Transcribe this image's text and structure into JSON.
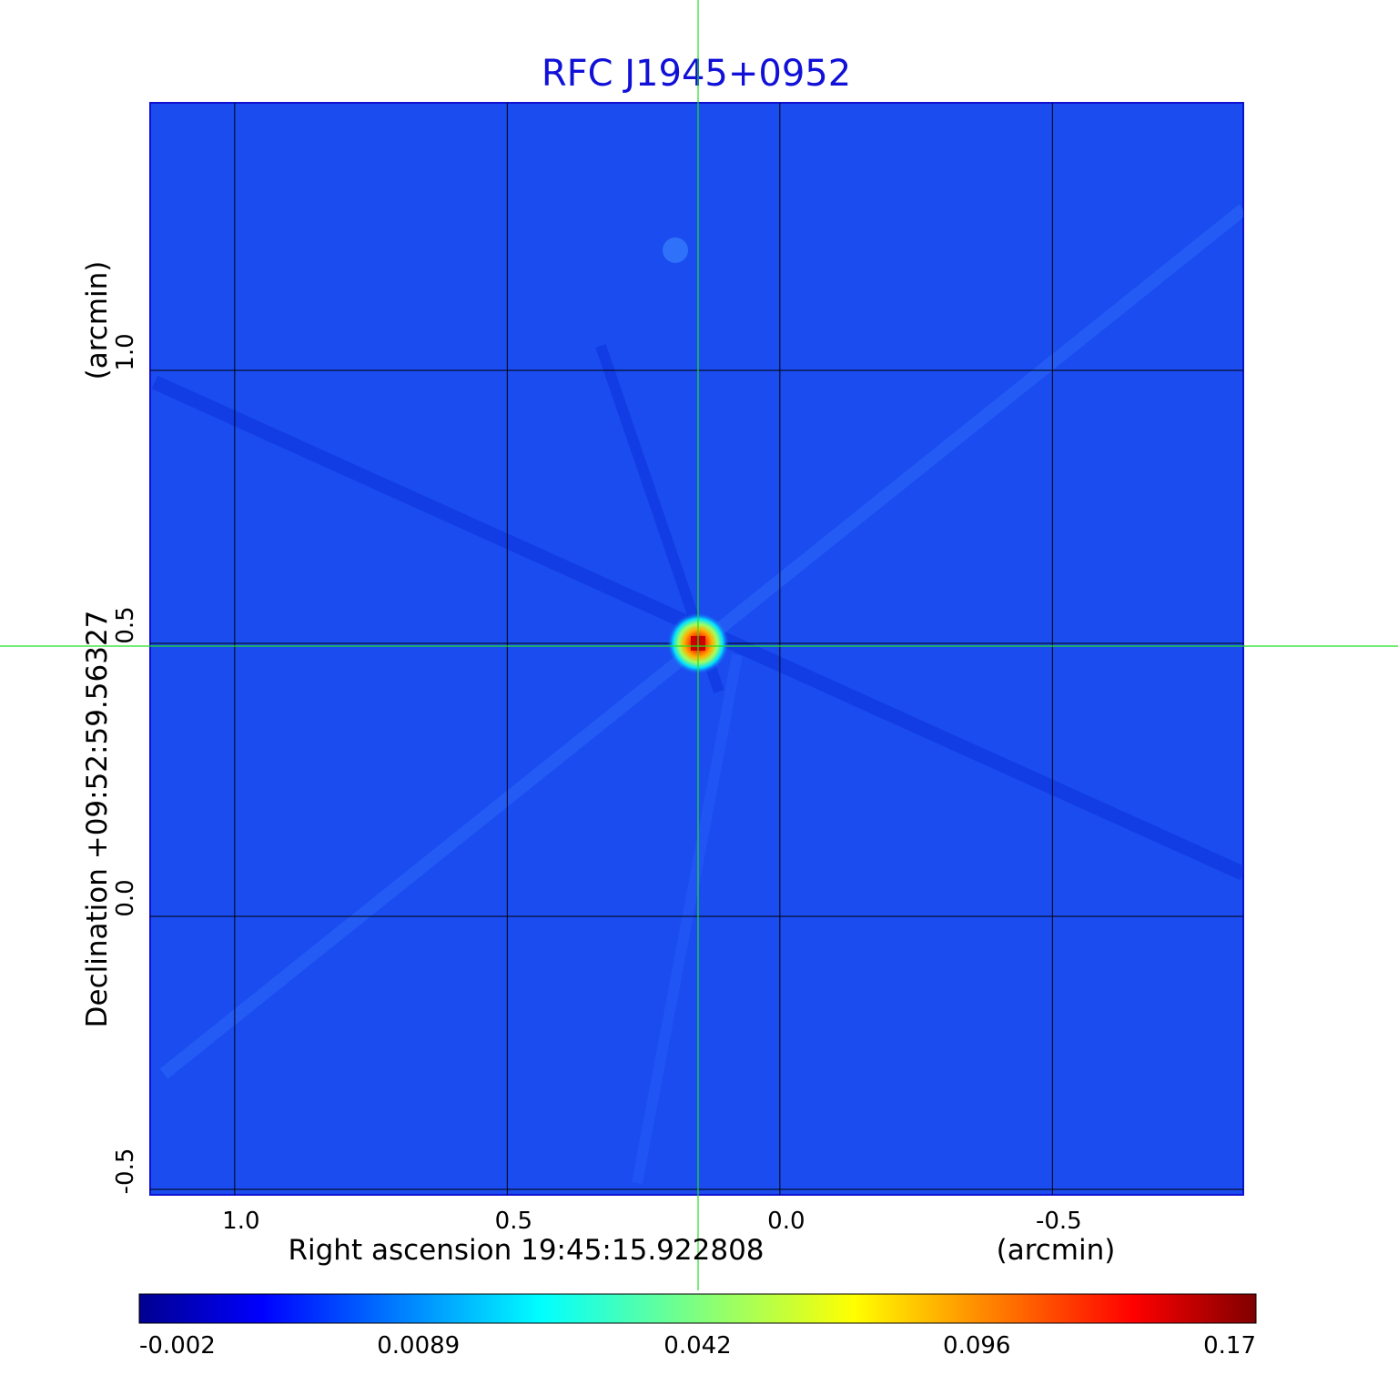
{
  "chart_data": {
    "type": "heatmap",
    "title": "RFC J1945+0952",
    "xlabel": "Right ascension  19:45:15.922808",
    "xunit": "(arcmin)",
    "ylabel": "Declination  +09:52:59.56327",
    "yunit": "(arcmin)",
    "xlim": [
      1.155,
      -0.85
    ],
    "ylim": [
      -0.51,
      1.49
    ],
    "x_ticks": [
      {
        "value": 1.0,
        "label": "1.0"
      },
      {
        "value": 0.5,
        "label": "0.5"
      },
      {
        "value": 0.0,
        "label": "0.0"
      },
      {
        "value": -0.5,
        "label": "-0.5"
      }
    ],
    "y_ticks": [
      {
        "value": 1.0,
        "label": "1.0"
      },
      {
        "value": 0.5,
        "label": "0.5"
      },
      {
        "value": 0.0,
        "label": "0.0"
      },
      {
        "value": -0.5,
        "label": "-0.5"
      }
    ],
    "grid": true,
    "colormap": "jet",
    "background_color": "#1a4cf0",
    "crosshair": {
      "x": 0.15,
      "y": 0.495,
      "color": "#22e022"
    },
    "peak": {
      "x": 0.15,
      "y": 0.5,
      "value": 0.17
    },
    "colorbar": {
      "min": -0.002,
      "max": 0.17,
      "ticks": [
        {
          "value": -0.002,
          "label": "-0.002"
        },
        {
          "value": 0.0089,
          "label": "0.0089"
        },
        {
          "value": 0.042,
          "label": "0.042"
        },
        {
          "value": 0.096,
          "label": "0.096"
        },
        {
          "value": 0.17,
          "label": "0.17"
        }
      ]
    }
  }
}
